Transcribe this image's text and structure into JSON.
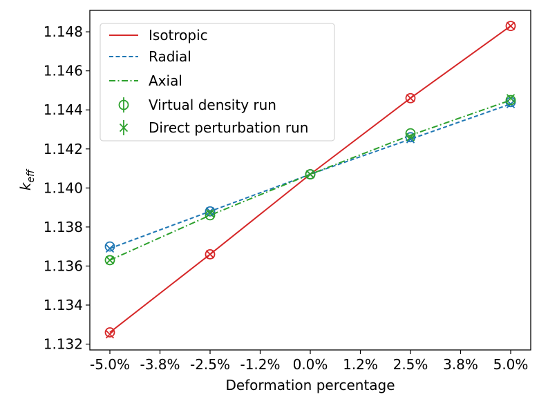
{
  "chart_data": {
    "type": "line",
    "xlabel": "Deformation percentage",
    "ylabel_main": "k",
    "ylabel_sub": "eff",
    "x": [
      -5.0,
      -2.5,
      0.0,
      2.5,
      5.0
    ],
    "xlim": [
      -5.5,
      5.5
    ],
    "ylim": [
      1.1317,
      1.1491
    ],
    "x_ticks": [
      -5.0,
      -3.75,
      -2.5,
      -1.25,
      0.0,
      1.25,
      2.5,
      3.75,
      5.0
    ],
    "x_tick_labels": [
      "-5.0%",
      "-3.8%",
      "-2.5%",
      "-1.2%",
      "0.0%",
      "1.2%",
      "2.5%",
      "3.8%",
      "5.0%"
    ],
    "y_ticks": [
      1.132,
      1.134,
      1.136,
      1.138,
      1.14,
      1.142,
      1.144,
      1.146,
      1.148
    ],
    "y_tick_labels": [
      "1.132",
      "1.134",
      "1.136",
      "1.138",
      "1.140",
      "1.142",
      "1.144",
      "1.146",
      "1.148"
    ],
    "grid": false,
    "legend_position": "top-left",
    "series": [
      {
        "name": "Isotropic",
        "color": "#d62728",
        "linestyle": "solid",
        "values": [
          1.1326,
          1.1366,
          1.1407,
          1.1446,
          1.1483
        ],
        "virtual_density": [
          1.1326,
          1.1366,
          1.1407,
          1.1446,
          1.1483
        ],
        "direct_perturbation": [
          1.1325,
          1.1366,
          1.1407,
          1.1446,
          1.1483
        ]
      },
      {
        "name": "Radial",
        "color": "#1f77b4",
        "linestyle": "dashed",
        "values": [
          1.1369,
          1.1388,
          1.1407,
          1.1425,
          1.1443
        ],
        "virtual_density": [
          1.137,
          1.1388,
          1.1407,
          1.1426,
          1.1444
        ],
        "direct_perturbation": [
          1.1369,
          1.1388,
          1.1407,
          1.1425,
          1.1443
        ]
      },
      {
        "name": "Axial",
        "color": "#2ca02c",
        "linestyle": "dashdot",
        "values": [
          1.1363,
          1.1386,
          1.1407,
          1.1427,
          1.1445
        ],
        "virtual_density": [
          1.1363,
          1.1386,
          1.1407,
          1.1428,
          1.1445
        ],
        "direct_perturbation": [
          1.1363,
          1.1387,
          1.1407,
          1.1426,
          1.1446
        ]
      }
    ],
    "marker_legend": [
      {
        "name": "Virtual density run",
        "marker": "circle",
        "color": "#2ca02c"
      },
      {
        "name": "Direct perturbation run",
        "marker": "x",
        "color": "#2ca02c"
      }
    ]
  }
}
